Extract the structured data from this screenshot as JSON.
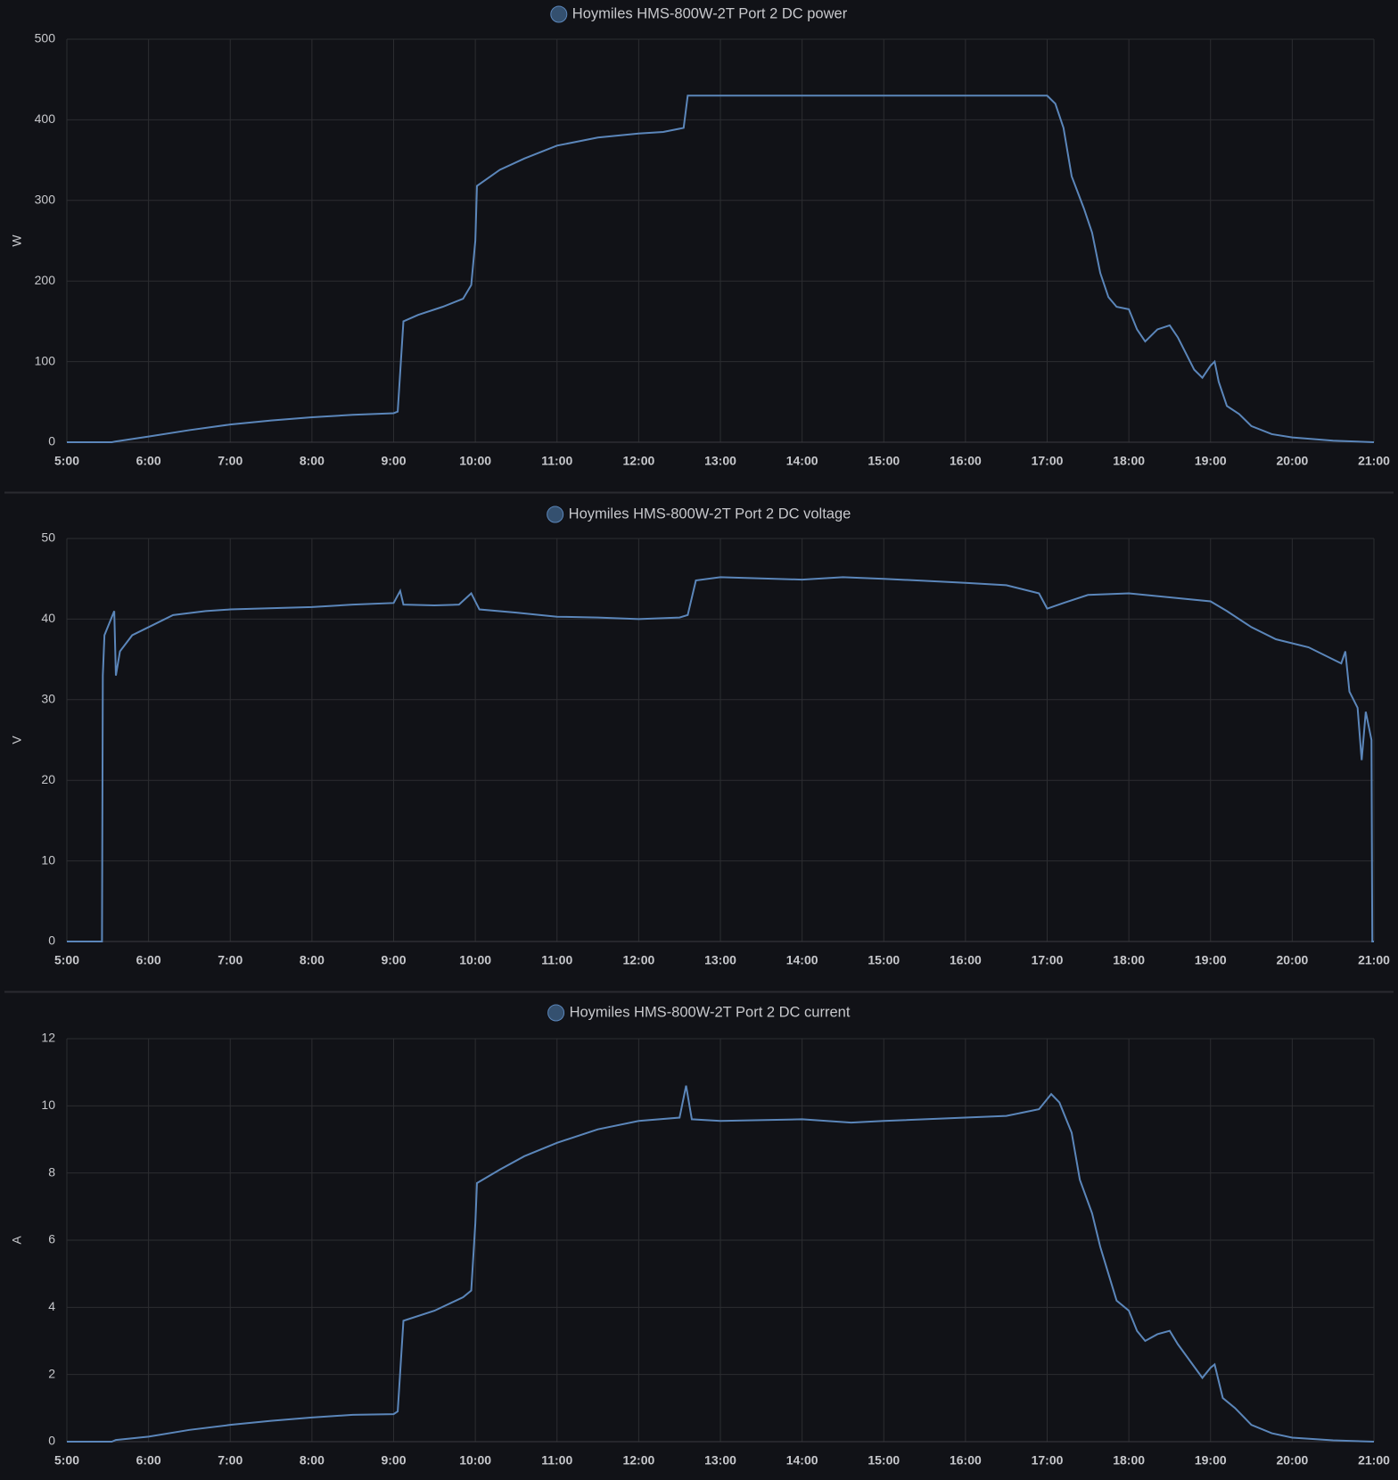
{
  "chart_data": [
    {
      "type": "line",
      "y_label": "W",
      "x": [
        5,
        5.55,
        5.6,
        6,
        6.5,
        7,
        7.5,
        8,
        8.5,
        9,
        9.05,
        9.12,
        9.3,
        9.6,
        9.85,
        9.95,
        10,
        10.02,
        10.3,
        10.6,
        11,
        11.5,
        12,
        12.3,
        12.55,
        12.6,
        13,
        15,
        17,
        17.1,
        17.2,
        17.3,
        17.45,
        17.55,
        17.65,
        17.75,
        17.85,
        18,
        18.1,
        18.2,
        18.35,
        18.5,
        18.6,
        18.7,
        18.8,
        18.9,
        19,
        19.05,
        19.1,
        19.2,
        19.35,
        19.5,
        19.75,
        20,
        20.5,
        21
      ],
      "series": [
        {
          "name": "Hoymiles HMS-800W-2T Port 2 DC power",
          "color": "#5b86ba",
          "values": [
            0,
            0,
            1,
            7,
            15,
            22,
            27,
            31,
            34,
            36,
            38,
            150,
            158,
            168,
            178,
            195,
            250,
            318,
            338,
            352,
            368,
            378,
            383,
            385,
            390,
            430,
            430,
            430,
            430,
            420,
            390,
            330,
            290,
            260,
            210,
            180,
            168,
            165,
            140,
            125,
            140,
            145,
            130,
            110,
            90,
            80,
            95,
            100,
            75,
            45,
            35,
            20,
            10,
            6,
            2,
            0
          ]
        }
      ],
      "xlim": [
        5,
        21
      ],
      "xticks": [
        {
          "value": 5,
          "label": "5:00"
        },
        {
          "value": 6,
          "label": "6:00"
        },
        {
          "value": 7,
          "label": "7:00"
        },
        {
          "value": 8,
          "label": "8:00"
        },
        {
          "value": 9,
          "label": "9:00"
        },
        {
          "value": 10,
          "label": "10:00"
        },
        {
          "value": 11,
          "label": "11:00"
        },
        {
          "value": 12,
          "label": "12:00"
        },
        {
          "value": 13,
          "label": "13:00"
        },
        {
          "value": 14,
          "label": "14:00"
        },
        {
          "value": 15,
          "label": "15:00"
        },
        {
          "value": 16,
          "label": "16:00"
        },
        {
          "value": 17,
          "label": "17:00"
        },
        {
          "value": 18,
          "label": "18:00"
        },
        {
          "value": 19,
          "label": "19:00"
        },
        {
          "value": 20,
          "label": "20:00"
        },
        {
          "value": 21,
          "label": "21:00"
        }
      ],
      "ylim": [
        0,
        500
      ],
      "yticks": [
        0,
        100,
        200,
        300,
        400,
        500
      ],
      "grid": true
    },
    {
      "type": "line",
      "y_label": "V",
      "x": [
        5,
        5.43,
        5.44,
        5.46,
        5.58,
        5.6,
        5.65,
        5.8,
        6,
        6.3,
        6.7,
        7,
        8,
        8.5,
        9,
        9.08,
        9.12,
        9.5,
        9.8,
        9.95,
        10.05,
        10.5,
        11,
        11.5,
        12,
        12.5,
        12.6,
        12.7,
        13,
        14,
        14.5,
        15,
        16,
        16.5,
        16.9,
        17,
        17.2,
        17.5,
        18,
        18.5,
        19,
        19.2,
        19.5,
        19.8,
        20.2,
        20.5,
        20.6,
        20.65,
        20.7,
        20.8,
        20.85,
        20.9,
        20.97,
        20.98,
        21
      ],
      "series": [
        {
          "name": "Hoymiles HMS-800W-2T Port 2 DC voltage",
          "color": "#5b86ba",
          "values": [
            0,
            0,
            33,
            38,
            41,
            33,
            36,
            38,
            39,
            40.5,
            41,
            41.2,
            41.5,
            41.8,
            42,
            43.5,
            41.8,
            41.7,
            41.8,
            43.2,
            41.2,
            40.8,
            40.3,
            40.2,
            40,
            40.2,
            40.5,
            44.8,
            45.2,
            44.9,
            45.2,
            45,
            44.5,
            44.2,
            43.2,
            41.3,
            42,
            43,
            43.2,
            42.7,
            42.2,
            41,
            39,
            37.5,
            36.5,
            35,
            34.5,
            36,
            31,
            29,
            22.5,
            28.5,
            25,
            0,
            0
          ]
        }
      ],
      "xlim": [
        5,
        21
      ],
      "xticks": [
        {
          "value": 5,
          "label": "5:00"
        },
        {
          "value": 6,
          "label": "6:00"
        },
        {
          "value": 7,
          "label": "7:00"
        },
        {
          "value": 8,
          "label": "8:00"
        },
        {
          "value": 9,
          "label": "9:00"
        },
        {
          "value": 10,
          "label": "10:00"
        },
        {
          "value": 11,
          "label": "11:00"
        },
        {
          "value": 12,
          "label": "12:00"
        },
        {
          "value": 13,
          "label": "13:00"
        },
        {
          "value": 14,
          "label": "14:00"
        },
        {
          "value": 15,
          "label": "15:00"
        },
        {
          "value": 16,
          "label": "16:00"
        },
        {
          "value": 17,
          "label": "17:00"
        },
        {
          "value": 18,
          "label": "18:00"
        },
        {
          "value": 19,
          "label": "19:00"
        },
        {
          "value": 20,
          "label": "20:00"
        },
        {
          "value": 21,
          "label": "21:00"
        }
      ],
      "ylim": [
        0,
        50
      ],
      "yticks": [
        0,
        10,
        20,
        30,
        40,
        50
      ],
      "grid": true
    },
    {
      "type": "line",
      "y_label": "A",
      "x": [
        5,
        5.55,
        5.6,
        6,
        6.5,
        7,
        7.5,
        8,
        8.5,
        9,
        9.05,
        9.12,
        9.5,
        9.85,
        9.95,
        10,
        10.02,
        10.3,
        10.6,
        11,
        11.5,
        12,
        12.5,
        12.58,
        12.65,
        13,
        14,
        14.6,
        15,
        16,
        16.5,
        16.9,
        17.05,
        17.15,
        17.3,
        17.4,
        17.55,
        17.65,
        17.75,
        17.85,
        18,
        18.1,
        18.2,
        18.35,
        18.5,
        18.6,
        18.75,
        18.9,
        19,
        19.05,
        19.15,
        19.3,
        19.5,
        19.75,
        20,
        20.5,
        21
      ],
      "series": [
        {
          "name": "Hoymiles HMS-800W-2T Port 2 DC current",
          "color": "#5b86ba",
          "values": [
            0,
            0,
            0.05,
            0.15,
            0.35,
            0.5,
            0.62,
            0.72,
            0.8,
            0.82,
            0.9,
            3.6,
            3.9,
            4.3,
            4.5,
            6.5,
            7.7,
            8.1,
            8.5,
            8.9,
            9.3,
            9.55,
            9.65,
            10.6,
            9.6,
            9.55,
            9.6,
            9.5,
            9.55,
            9.65,
            9.7,
            9.9,
            10.35,
            10.1,
            9.2,
            7.8,
            6.8,
            5.8,
            5,
            4.2,
            3.9,
            3.3,
            3,
            3.2,
            3.3,
            2.9,
            2.4,
            1.9,
            2.2,
            2.3,
            1.3,
            1,
            0.5,
            0.25,
            0.12,
            0.04,
            0
          ]
        }
      ],
      "xlim": [
        5,
        21
      ],
      "xticks": [
        {
          "value": 5,
          "label": "5:00"
        },
        {
          "value": 6,
          "label": "6:00"
        },
        {
          "value": 7,
          "label": "7:00"
        },
        {
          "value": 8,
          "label": "8:00"
        },
        {
          "value": 9,
          "label": "9:00"
        },
        {
          "value": 10,
          "label": "10:00"
        },
        {
          "value": 11,
          "label": "11:00"
        },
        {
          "value": 12,
          "label": "12:00"
        },
        {
          "value": 13,
          "label": "13:00"
        },
        {
          "value": 14,
          "label": "14:00"
        },
        {
          "value": 15,
          "label": "15:00"
        },
        {
          "value": 16,
          "label": "16:00"
        },
        {
          "value": 17,
          "label": "17:00"
        },
        {
          "value": 18,
          "label": "18:00"
        },
        {
          "value": 19,
          "label": "19:00"
        },
        {
          "value": 20,
          "label": "20:00"
        },
        {
          "value": 21,
          "label": "21:00"
        }
      ],
      "ylim": [
        0,
        12
      ],
      "yticks": [
        0,
        2,
        4,
        6,
        8,
        10,
        12
      ],
      "grid": true
    }
  ]
}
